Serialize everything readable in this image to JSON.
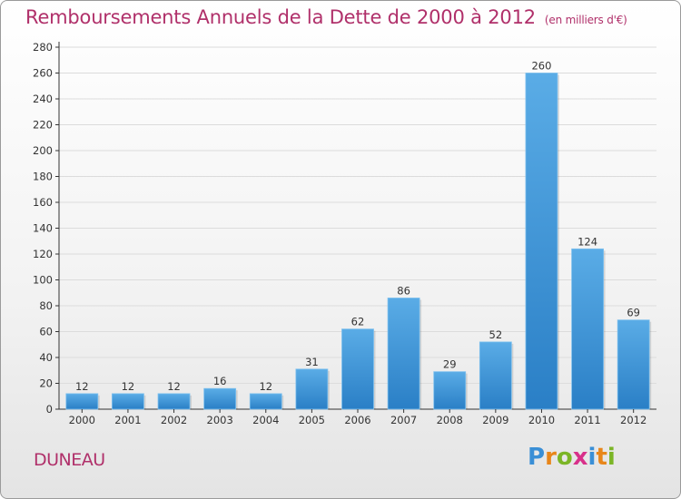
{
  "title": "Remboursements Annuels de la Dette de 2000 à 2012",
  "unit_note": "(en milliers d'€)",
  "commune": "DUNEAU",
  "logo": {
    "text": "Proxiti",
    "letter_colors": [
      "#3a8fd6",
      "#e8861a",
      "#7bb526",
      "#d8308a",
      "#3a8fd6",
      "#e8861a",
      "#7bb526"
    ]
  },
  "colors": {
    "title": "#b0306a",
    "bar_light": "#5aace6",
    "bar_dark": "#2a7fc6",
    "grid": "#dcdcdc",
    "axis": "#333333"
  },
  "chart_data": {
    "type": "bar",
    "categories": [
      "2000",
      "2001",
      "2002",
      "2003",
      "2004",
      "2005",
      "2006",
      "2007",
      "2008",
      "2009",
      "2010",
      "2011",
      "2012"
    ],
    "values": [
      12,
      12,
      12,
      16,
      12,
      31,
      62,
      86,
      29,
      52,
      260,
      124,
      69
    ],
    "yticks": [
      0,
      20,
      40,
      60,
      80,
      100,
      120,
      140,
      160,
      180,
      200,
      220,
      240,
      260,
      280
    ],
    "ylim": [
      0,
      280
    ],
    "grid": true,
    "legend": "none"
  }
}
